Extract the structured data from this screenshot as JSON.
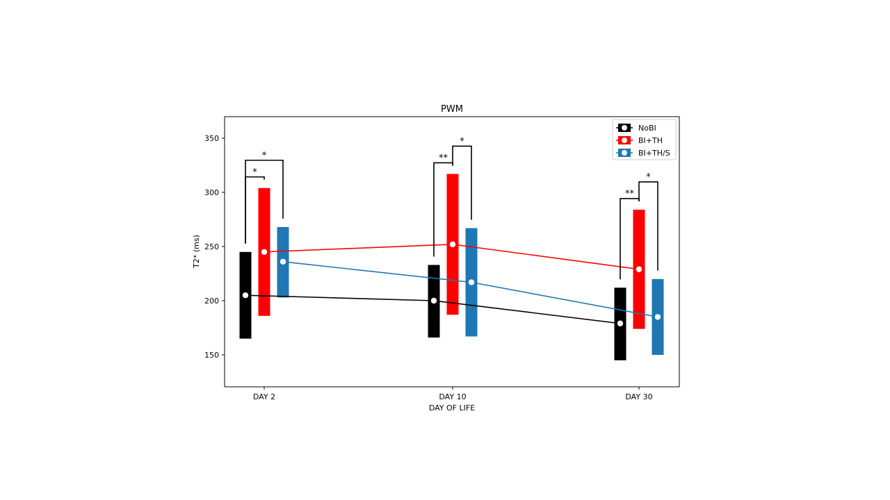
{
  "chart_data": {
    "type": "line",
    "title": "PWM",
    "xlabel": "DAY OF LIFE",
    "ylabel": "T2* (ms)",
    "categories": [
      "DAY 2",
      "DAY 10",
      "DAY 30"
    ],
    "ylim": [
      120,
      370
    ],
    "yticks": [
      150,
      200,
      250,
      300,
      350
    ],
    "grid": false,
    "legend_position": "top-right",
    "series": [
      {
        "name": "NoBI",
        "color": "#000000",
        "mean": [
          205,
          200,
          179
        ],
        "low": [
          165,
          166,
          145
        ],
        "high": [
          245,
          233,
          212
        ]
      },
      {
        "name": "BI+TH",
        "color": "#ff0000",
        "mean": [
          245,
          252,
          229
        ],
        "low": [
          186,
          187,
          174
        ],
        "high": [
          304,
          317,
          284
        ]
      },
      {
        "name": "BI+TH/S",
        "color": "#1f77b4",
        "mean": [
          236,
          217,
          185
        ],
        "low": [
          203,
          167,
          150
        ],
        "high": [
          268,
          267,
          220
        ]
      }
    ],
    "significance": [
      {
        "category": "DAY 2",
        "pair": [
          "NoBI",
          "BI+TH"
        ],
        "label": "*"
      },
      {
        "category": "DAY 2",
        "pair": [
          "NoBI",
          "BI+TH/S"
        ],
        "label": "*"
      },
      {
        "category": "DAY 10",
        "pair": [
          "NoBI",
          "BI+TH"
        ],
        "label": "**"
      },
      {
        "category": "DAY 10",
        "pair": [
          "BI+TH",
          "BI+TH/S"
        ],
        "label": "*"
      },
      {
        "category": "DAY 30",
        "pair": [
          "NoBI",
          "BI+TH"
        ],
        "label": "**"
      },
      {
        "category": "DAY 30",
        "pair": [
          "BI+TH",
          "BI+TH/S"
        ],
        "label": "*"
      }
    ]
  }
}
